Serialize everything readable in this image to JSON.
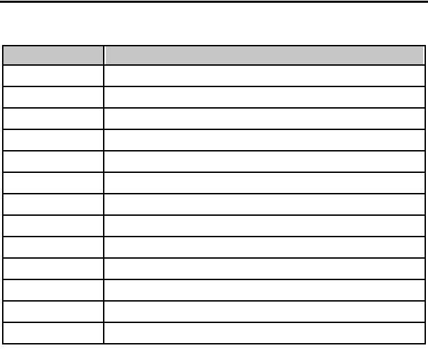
{
  "page": {
    "background": "#ffffff",
    "top_rule_color": "#000000"
  },
  "table": {
    "border_color": "#000000",
    "header_fill": "#c6c6c6",
    "columns": [
      {
        "label": ""
      },
      {
        "label": ""
      }
    ],
    "rows": [
      [
        "",
        ""
      ],
      [
        "",
        ""
      ],
      [
        "",
        ""
      ],
      [
        "",
        ""
      ],
      [
        "",
        ""
      ],
      [
        "",
        ""
      ],
      [
        "",
        ""
      ],
      [
        "",
        ""
      ],
      [
        "",
        ""
      ],
      [
        "",
        ""
      ],
      [
        "",
        ""
      ],
      [
        "",
        ""
      ],
      [
        "",
        ""
      ]
    ]
  }
}
